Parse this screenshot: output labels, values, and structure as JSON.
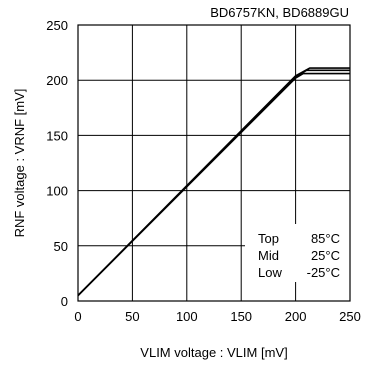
{
  "chart_data": {
    "type": "line",
    "title": "BD6757KN,  BD6889GU",
    "xlabel": "VLIM voltage : VLIM [mV]",
    "ylabel": "RNF voltage : VRNF [mV]",
    "xlim": [
      0,
      250
    ],
    "ylim": [
      0,
      250
    ],
    "xticks": [
      0,
      50,
      100,
      150,
      200,
      250
    ],
    "yticks": [
      0,
      50,
      100,
      150,
      200,
      250
    ],
    "xtick_labels": [
      "0",
      "50",
      "100",
      "150",
      "200",
      "250"
    ],
    "ytick_labels": [
      "0",
      "50",
      "100",
      "150",
      "200",
      "250"
    ],
    "grid": true,
    "legend_position": "bottom-right",
    "legend": [
      {
        "label": "Top",
        "value": "85°C"
      },
      {
        "label": "Mid",
        "value": "25°C"
      },
      {
        "label": "Low",
        "value": "-25°C"
      }
    ],
    "series": [
      {
        "label": "Top",
        "x": [
          0,
          200,
          213,
          250
        ],
        "y": [
          5,
          204,
          211,
          211
        ]
      },
      {
        "label": "Mid",
        "x": [
          0,
          200,
          210,
          250
        ],
        "y": [
          5,
          203,
          209,
          209
        ]
      },
      {
        "label": "Low",
        "x": [
          0,
          200,
          207,
          250
        ],
        "y": [
          5,
          202,
          206,
          206
        ]
      }
    ]
  }
}
